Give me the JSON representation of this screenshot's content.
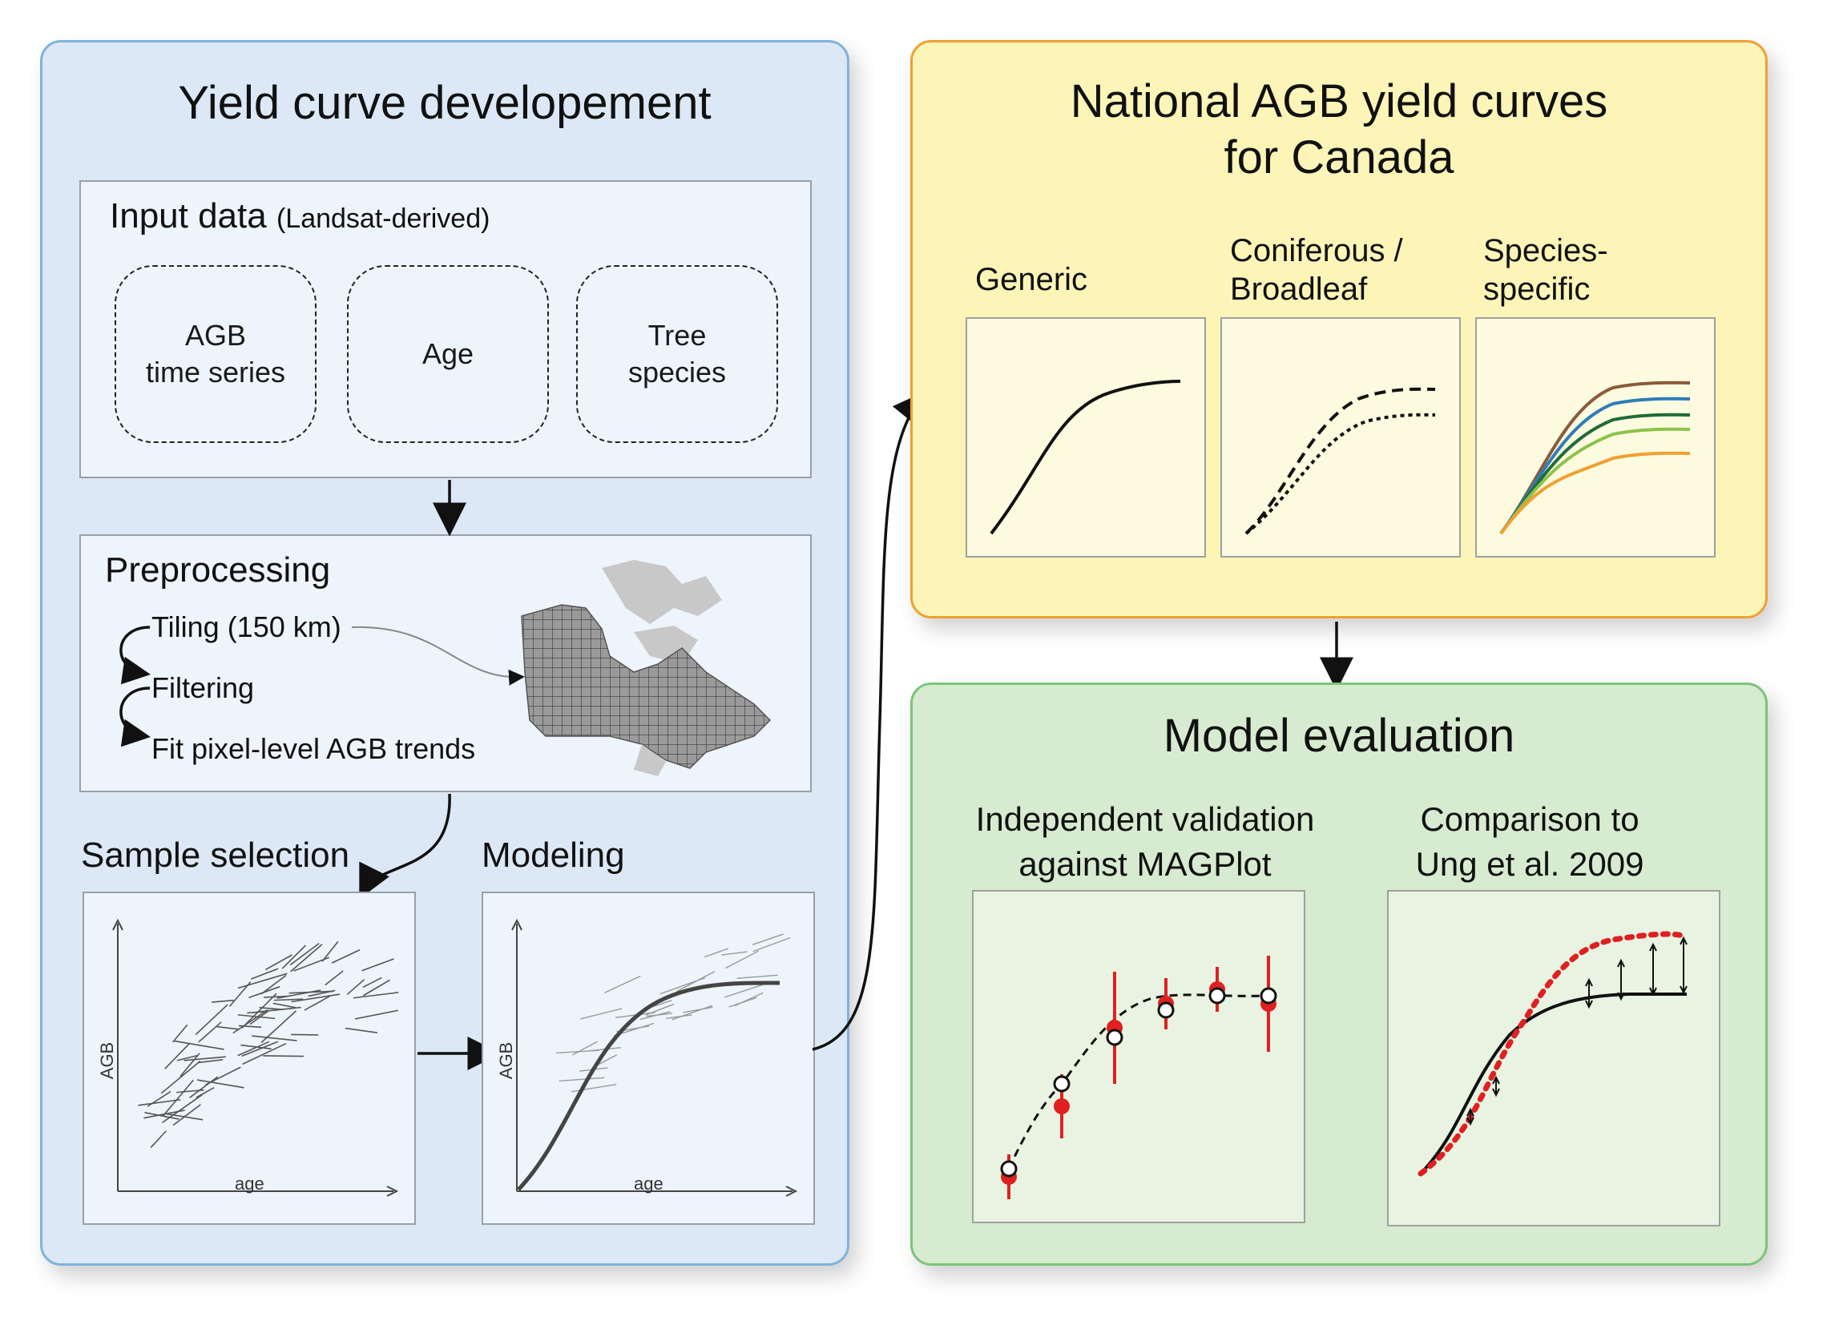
{
  "left_panel": {
    "title": "Yield curve developement",
    "input": {
      "title": "Input data",
      "subtitle": "(Landsat-derived)",
      "items": [
        "AGB\ntime series",
        "Age",
        "Tree\nspecies"
      ]
    },
    "preprocessing": {
      "title": "Preprocessing",
      "steps": [
        "Tiling (150 km)",
        "Filtering",
        "Fit pixel-level AGB trends"
      ]
    },
    "sample_selection": {
      "title": "Sample selection",
      "xlabel": "age",
      "ylabel": "AGB"
    },
    "modeling": {
      "title": "Modeling",
      "xlabel": "age",
      "ylabel": "AGB"
    }
  },
  "yield_panel": {
    "title_line1": "National AGB yield curves",
    "title_line2": "for Canada",
    "curves": [
      {
        "label": "Generic"
      },
      {
        "label": "Coniferous /\nBroadleaf"
      },
      {
        "label": "Species-\nspecific"
      }
    ],
    "species_colors": [
      "#8b5a3c",
      "#2d7db8",
      "#1f6b3a",
      "#8bc34a",
      "#f0a030"
    ]
  },
  "eval_panel": {
    "title": "Model evaluation",
    "validation_label": "Independent validation\nagainst MAGPlot",
    "comparison_label": "Comparison to\nUng et al. 2009"
  },
  "colors": {
    "left_bg": "#dce8f5",
    "left_border": "#7fb3dd",
    "yield_bg": "#fdf5b8",
    "yield_border": "#f0a030",
    "eval_bg": "#d7ebd0",
    "eval_border": "#7cc47a",
    "marker_red": "#e02020"
  }
}
